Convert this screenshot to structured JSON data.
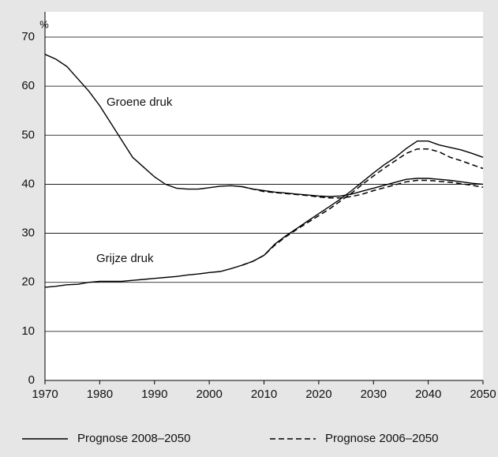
{
  "chart_data": {
    "type": "line",
    "x": [
      1970,
      1972,
      1974,
      1976,
      1978,
      1980,
      1982,
      1984,
      1986,
      1988,
      1990,
      1992,
      1994,
      1996,
      1998,
      2000,
      2002,
      2004,
      2006,
      2008,
      2010,
      2012,
      2014,
      2016,
      2018,
      2020,
      2022,
      2024,
      2026,
      2028,
      2030,
      2032,
      2034,
      2036,
      2038,
      2040,
      2042,
      2044,
      2046,
      2048,
      2050
    ],
    "xlim": [
      1970,
      2050
    ],
    "xticks": [
      1970,
      1980,
      1990,
      2000,
      2010,
      2020,
      2030,
      2040,
      2050
    ],
    "ylim": [
      0,
      70
    ],
    "yticks": [
      0,
      10,
      20,
      30,
      40,
      50,
      60,
      70
    ],
    "y_unit": "%",
    "grid": true,
    "annotations": [
      "Groene druk",
      "Grijze druk"
    ],
    "series": [
      {
        "name": "Prognose 2008–2050",
        "color": "#000000",
        "dashed": false,
        "groene": [
          66.5,
          65.5,
          64,
          61.5,
          59,
          56,
          52.5,
          49,
          45.5,
          43.5,
          41.5,
          40,
          39.2,
          39,
          39,
          39.3,
          39.6,
          39.7,
          39.5,
          39,
          38.7,
          38.4,
          38.2,
          38,
          37.8,
          37.6,
          37.5,
          37.6,
          38,
          38.6,
          39.2,
          39.8,
          40.4,
          41,
          41.2,
          41.2,
          41,
          40.8,
          40.5,
          40.2,
          40
        ],
        "grijze": [
          19,
          19.2,
          19.5,
          19.6,
          20,
          20.2,
          20.2,
          20.2,
          20.4,
          20.6,
          20.8,
          21,
          21.2,
          21.5,
          21.7,
          22,
          22.2,
          22.8,
          23.5,
          24.3,
          25.5,
          27.8,
          29.5,
          31,
          32.5,
          34,
          35.5,
          37,
          38.7,
          40.5,
          42.3,
          44,
          45.5,
          47.3,
          48.8,
          48.8,
          48,
          47.5,
          47,
          46.3,
          45.5
        ]
      },
      {
        "name": "Prognose 2006–2050",
        "color": "#000000",
        "dashed": true,
        "groene": [
          null,
          null,
          null,
          null,
          null,
          null,
          null,
          null,
          null,
          null,
          null,
          null,
          null,
          null,
          null,
          null,
          null,
          null,
          39.5,
          39,
          38.5,
          38.3,
          38.1,
          37.9,
          37.7,
          37.4,
          37.2,
          37.2,
          37.5,
          38,
          38.7,
          39.3,
          39.9,
          40.5,
          40.8,
          40.8,
          40.6,
          40.4,
          40.1,
          39.8,
          39.4
        ],
        "grijze": [
          null,
          null,
          null,
          null,
          null,
          null,
          null,
          null,
          null,
          null,
          null,
          null,
          null,
          null,
          null,
          null,
          null,
          null,
          23.5,
          24.3,
          25.5,
          27.6,
          29.3,
          30.8,
          32.2,
          33.6,
          35,
          36.6,
          38.2,
          40,
          41.7,
          43.3,
          44.8,
          46.3,
          47.2,
          47.2,
          46.6,
          45.5,
          44.8,
          44,
          43.2
        ]
      }
    ]
  }
}
